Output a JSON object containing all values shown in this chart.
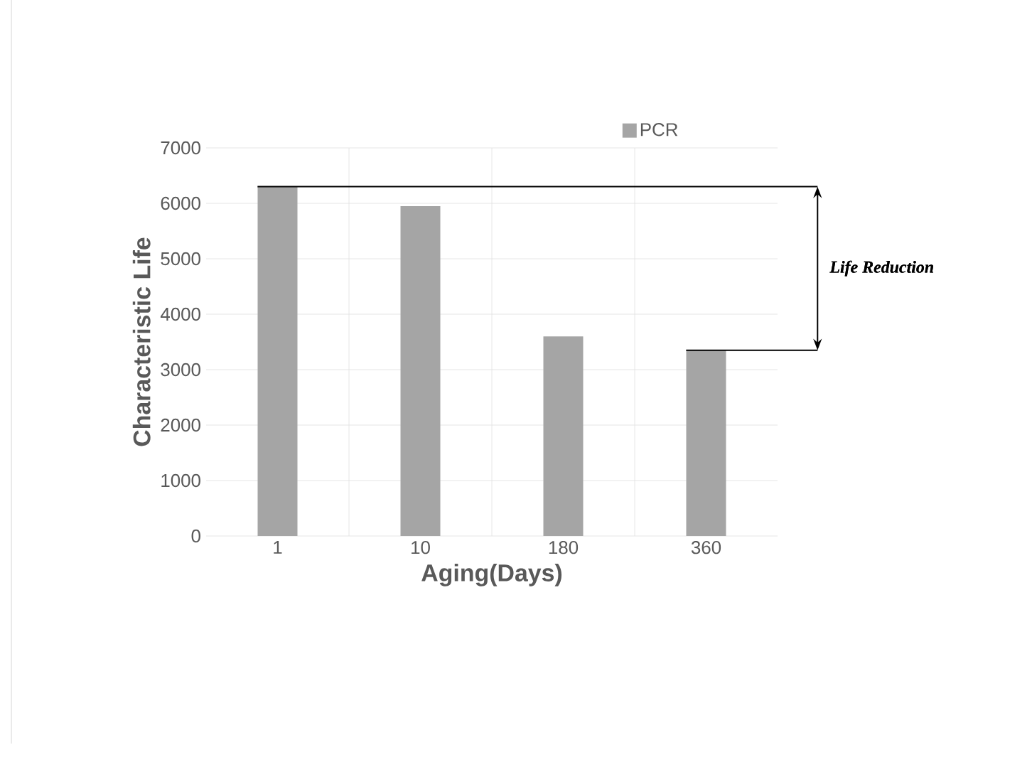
{
  "chart_data": {
    "type": "bar",
    "xlabel": "Aging(Days)",
    "ylabel": "Characteristic Life",
    "categories": [
      "1",
      "10",
      "180",
      "360"
    ],
    "series": [
      {
        "name": "PCR",
        "color": "#a5a5a5",
        "values": [
          6300,
          5950,
          3600,
          3350
        ]
      }
    ],
    "ylim": [
      0,
      7000
    ],
    "yticks": [
      0,
      1000,
      2000,
      3000,
      4000,
      5000,
      6000,
      7000
    ],
    "grid": true,
    "legend": "top right",
    "ref_lines": [
      {
        "axis": "y",
        "value": 6300,
        "color": "#000000"
      },
      {
        "axis": "y",
        "value": 3350,
        "color": "#000000"
      }
    ],
    "annotations": [
      "*Life Reduction*"
    ]
  }
}
